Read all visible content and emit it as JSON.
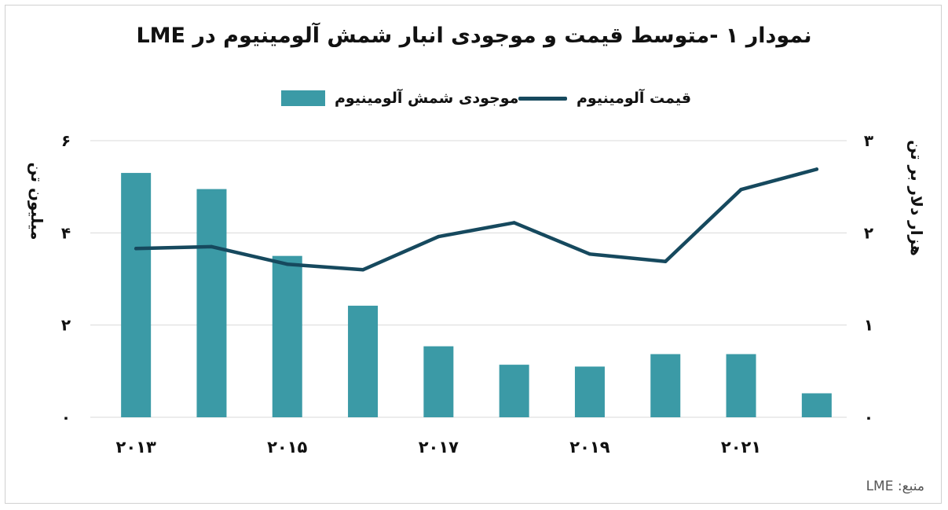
{
  "title": "نمودار ۱ -متوسط قیمت و موجودی انبار شمش آلومینیوم در LME",
  "legend": {
    "line_label": "قیمت آلومینیوم",
    "bar_label": "موجودی شمش آلومینیوم"
  },
  "source": "منبع: LME",
  "colors": {
    "bars": "#3b9aa6",
    "line": "#16495e",
    "grid": "#d9d9d9"
  },
  "chart_data": {
    "type": "bar",
    "x": [
      "2013",
      "2014",
      "2015",
      "2016",
      "2017",
      "2018",
      "2019",
      "2020",
      "2021",
      "2022"
    ],
    "x_tick_labels": [
      "۲۰۱۳",
      "",
      "۲۰۱۵",
      "",
      "۲۰۱۷",
      "",
      "۲۰۱۹",
      "",
      "۲۰۲۱",
      ""
    ],
    "series": [
      {
        "name": "موجودی شمش آلومینیوم",
        "type": "bar",
        "axis": "left",
        "values": [
          5.3,
          4.95,
          3.5,
          2.42,
          1.54,
          1.14,
          1.1,
          1.37,
          1.37,
          0.52
        ]
      },
      {
        "name": "قیمت آلومینیوم",
        "type": "line",
        "axis": "right",
        "values": [
          1.83,
          1.85,
          1.66,
          1.6,
          1.96,
          2.11,
          1.77,
          1.69,
          2.47,
          2.69
        ]
      }
    ],
    "left_axis": {
      "label": "میلیون تن",
      "range": [
        0,
        6
      ],
      "ticks": [
        {
          "value": 0,
          "label": "۰"
        },
        {
          "value": 2,
          "label": "۲"
        },
        {
          "value": 4,
          "label": "۴"
        },
        {
          "value": 6,
          "label": "۶"
        }
      ]
    },
    "right_axis": {
      "label": "هزار دلار بر تن",
      "range": [
        0,
        3
      ],
      "ticks": [
        {
          "value": 0,
          "label": "۰"
        },
        {
          "value": 1,
          "label": "۱"
        },
        {
          "value": 2,
          "label": "۲"
        },
        {
          "value": 3,
          "label": "۳"
        }
      ]
    },
    "grid": true,
    "legend_position": "top"
  }
}
